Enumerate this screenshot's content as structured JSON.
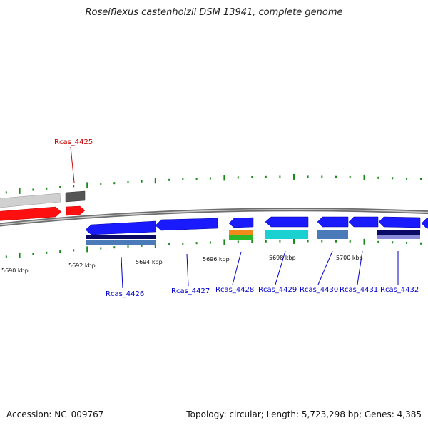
{
  "title": "Roseiflexus castenholzii DSM 13941, complete genome",
  "footer": {
    "accession": "Accession: NC_009767",
    "summary": "Topology: circular; Length: 5,723,298 bp; Genes: 4,385"
  },
  "colors": {
    "backbone": "#7a7a7a",
    "tick": "#1a8a1a",
    "highlight_label": "#cc0000",
    "gene_label": "#0000cc",
    "blue": "#1a1aff",
    "dark_navy": "#0a0a66",
    "steel_blue": "#4a7ab8",
    "cyan": "#1ad0d0",
    "orange": "#f08a1a",
    "green": "#2ab82a",
    "red": "#ff1010",
    "grey": "#cfcfcf",
    "dark_grey": "#5a5a5a"
  },
  "scale_labels": [
    "5690 kbp",
    "5692 kbp",
    "5694 kbp",
    "5696 kbp",
    "5698 kbp",
    "5700 kbp"
  ],
  "gene_labels": [
    "Rcas_4425",
    "Rcas_4426",
    "Rcas_4427",
    "Rcas_4428",
    "Rcas_4429",
    "Rcas_4430",
    "Rcas_4431",
    "Rcas_4432"
  ]
}
